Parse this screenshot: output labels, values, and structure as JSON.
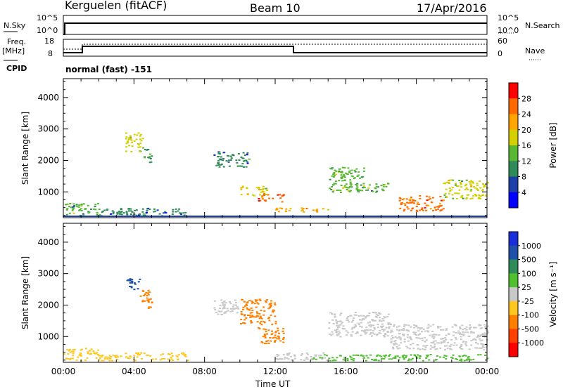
{
  "header": {
    "station": "Kerguelen (fitACF)",
    "beam": "Beam 10",
    "date": "17/Apr/2016"
  },
  "labels": {
    "nsky": "N.Sky",
    "freq": "Freq.",
    "mhz": "[MHz]",
    "cpid": "CPID",
    "nsearch": "N.Search",
    "nave": "Nave",
    "cpid_value": "normal (fast) -151",
    "time_axis": "Time UT"
  },
  "panel1_ticks": {
    "left_top": "10^5",
    "left_bottom": "10^0",
    "right_top": "10^5",
    "right_bottom": "10^0"
  },
  "panel2_ticks": {
    "left_top": "18",
    "left_bottom": "8",
    "right_top": "60",
    "right_bottom": "0"
  },
  "colors": {
    "power": [
      "#0000ff",
      "#1e3fa8",
      "#2e8b57",
      "#59b833",
      "#d4d000",
      "#ffa500",
      "#ff6a00",
      "#ff0000"
    ],
    "velocity": [
      "#1a2fd8",
      "#2050a8",
      "#2e8b57",
      "#50c030",
      "#c8c8c8",
      "#ffc820",
      "#ff8000",
      "#ff4000",
      "#ff0000"
    ]
  },
  "chart_data": [
    {
      "type": "heatmap",
      "title": "Power",
      "ylabel": "Slant Range [km]",
      "ylim": [
        180,
        4600
      ],
      "yticks": [
        1000,
        2000,
        3000,
        4000
      ],
      "x_range": [
        "00:00",
        "24:00"
      ],
      "colorbar": {
        "label": "Power [dB]",
        "ticks": [
          "4",
          "8",
          "12",
          "16",
          "20",
          "24",
          "28"
        ],
        "range": [
          0,
          32
        ]
      },
      "echo_regions": [
        {
          "t": [
            0.0,
            2.0
          ],
          "range_km": [
            250,
            650
          ],
          "value_db": 12
        },
        {
          "t": [
            2.0,
            7.0
          ],
          "range_km": [
            250,
            500
          ],
          "value_db": 8
        },
        {
          "t": [
            3.5,
            4.5
          ],
          "range_km": [
            2300,
            2900
          ],
          "value_db": 16
        },
        {
          "t": [
            4.5,
            5.0
          ],
          "range_km": [
            1950,
            2400
          ],
          "value_db": 10
        },
        {
          "t": [
            8.5,
            10.5
          ],
          "range_km": [
            1800,
            2300
          ],
          "value_db": 8
        },
        {
          "t": [
            10.0,
            11.5
          ],
          "range_km": [
            900,
            1200
          ],
          "value_db": 18
        },
        {
          "t": [
            11.0,
            12.5
          ],
          "range_km": [
            700,
            950
          ],
          "value_db": 26
        },
        {
          "t": [
            12.0,
            15.0
          ],
          "range_km": [
            380,
            520
          ],
          "value_db": 22
        },
        {
          "t": [
            15.0,
            17.0
          ],
          "range_km": [
            1000,
            1800
          ],
          "value_db": 14
        },
        {
          "t": [
            16.5,
            18.5
          ],
          "range_km": [
            1000,
            1300
          ],
          "value_db": 12
        },
        {
          "t": [
            19.0,
            21.5
          ],
          "range_km": [
            400,
            900
          ],
          "value_db": 26
        },
        {
          "t": [
            21.5,
            24.0
          ],
          "range_km": [
            800,
            1400
          ],
          "value_db": 16
        }
      ]
    },
    {
      "type": "heatmap",
      "title": "Velocity",
      "ylabel": "Slant Range [km]",
      "ylim": [
        180,
        4600
      ],
      "yticks": [
        1000,
        2000,
        3000,
        4000
      ],
      "x_range": [
        "00:00",
        "24:00"
      ],
      "xticks": [
        "00:00",
        "04:00",
        "08:00",
        "12:00",
        "16:00",
        "20:00",
        "00:00"
      ],
      "colorbar": {
        "label": "Velocity [m s⁻¹]",
        "ticks": [
          "1000",
          "500",
          "100",
          "25",
          "-25",
          "-100",
          "-500",
          "-1000"
        ]
      },
      "echo_regions": [
        {
          "t": [
            0.0,
            2.0
          ],
          "range_km": [
            250,
            650
          ],
          "value_ms": -100
        },
        {
          "t": [
            2.0,
            7.0
          ],
          "range_km": [
            250,
            500
          ],
          "value_ms": -60
        },
        {
          "t": [
            3.5,
            4.3
          ],
          "range_km": [
            2500,
            2900
          ],
          "value_ms": 500
        },
        {
          "t": [
            4.3,
            5.0
          ],
          "range_km": [
            1900,
            2500
          ],
          "value_ms": -200
        },
        {
          "t": [
            8.5,
            10.0
          ],
          "range_km": [
            1700,
            2200
          ],
          "value_ms": 0
        },
        {
          "t": [
            10.0,
            12.0
          ],
          "range_km": [
            1400,
            2200
          ],
          "value_ms": -300
        },
        {
          "t": [
            11.0,
            12.5
          ],
          "range_km": [
            800,
            1300
          ],
          "value_ms": -400
        },
        {
          "t": [
            12.0,
            15.0
          ],
          "range_km": [
            250,
            500
          ],
          "value_ms": 0
        },
        {
          "t": [
            15.0,
            18.5
          ],
          "range_km": [
            1000,
            1800
          ],
          "value_ms": 0
        },
        {
          "t": [
            18.5,
            24.0
          ],
          "range_km": [
            600,
            1400
          ],
          "value_ms": 0
        },
        {
          "t": [
            14.0,
            24.0
          ],
          "range_km": [
            250,
            450
          ],
          "value_ms": 50
        }
      ]
    }
  ]
}
